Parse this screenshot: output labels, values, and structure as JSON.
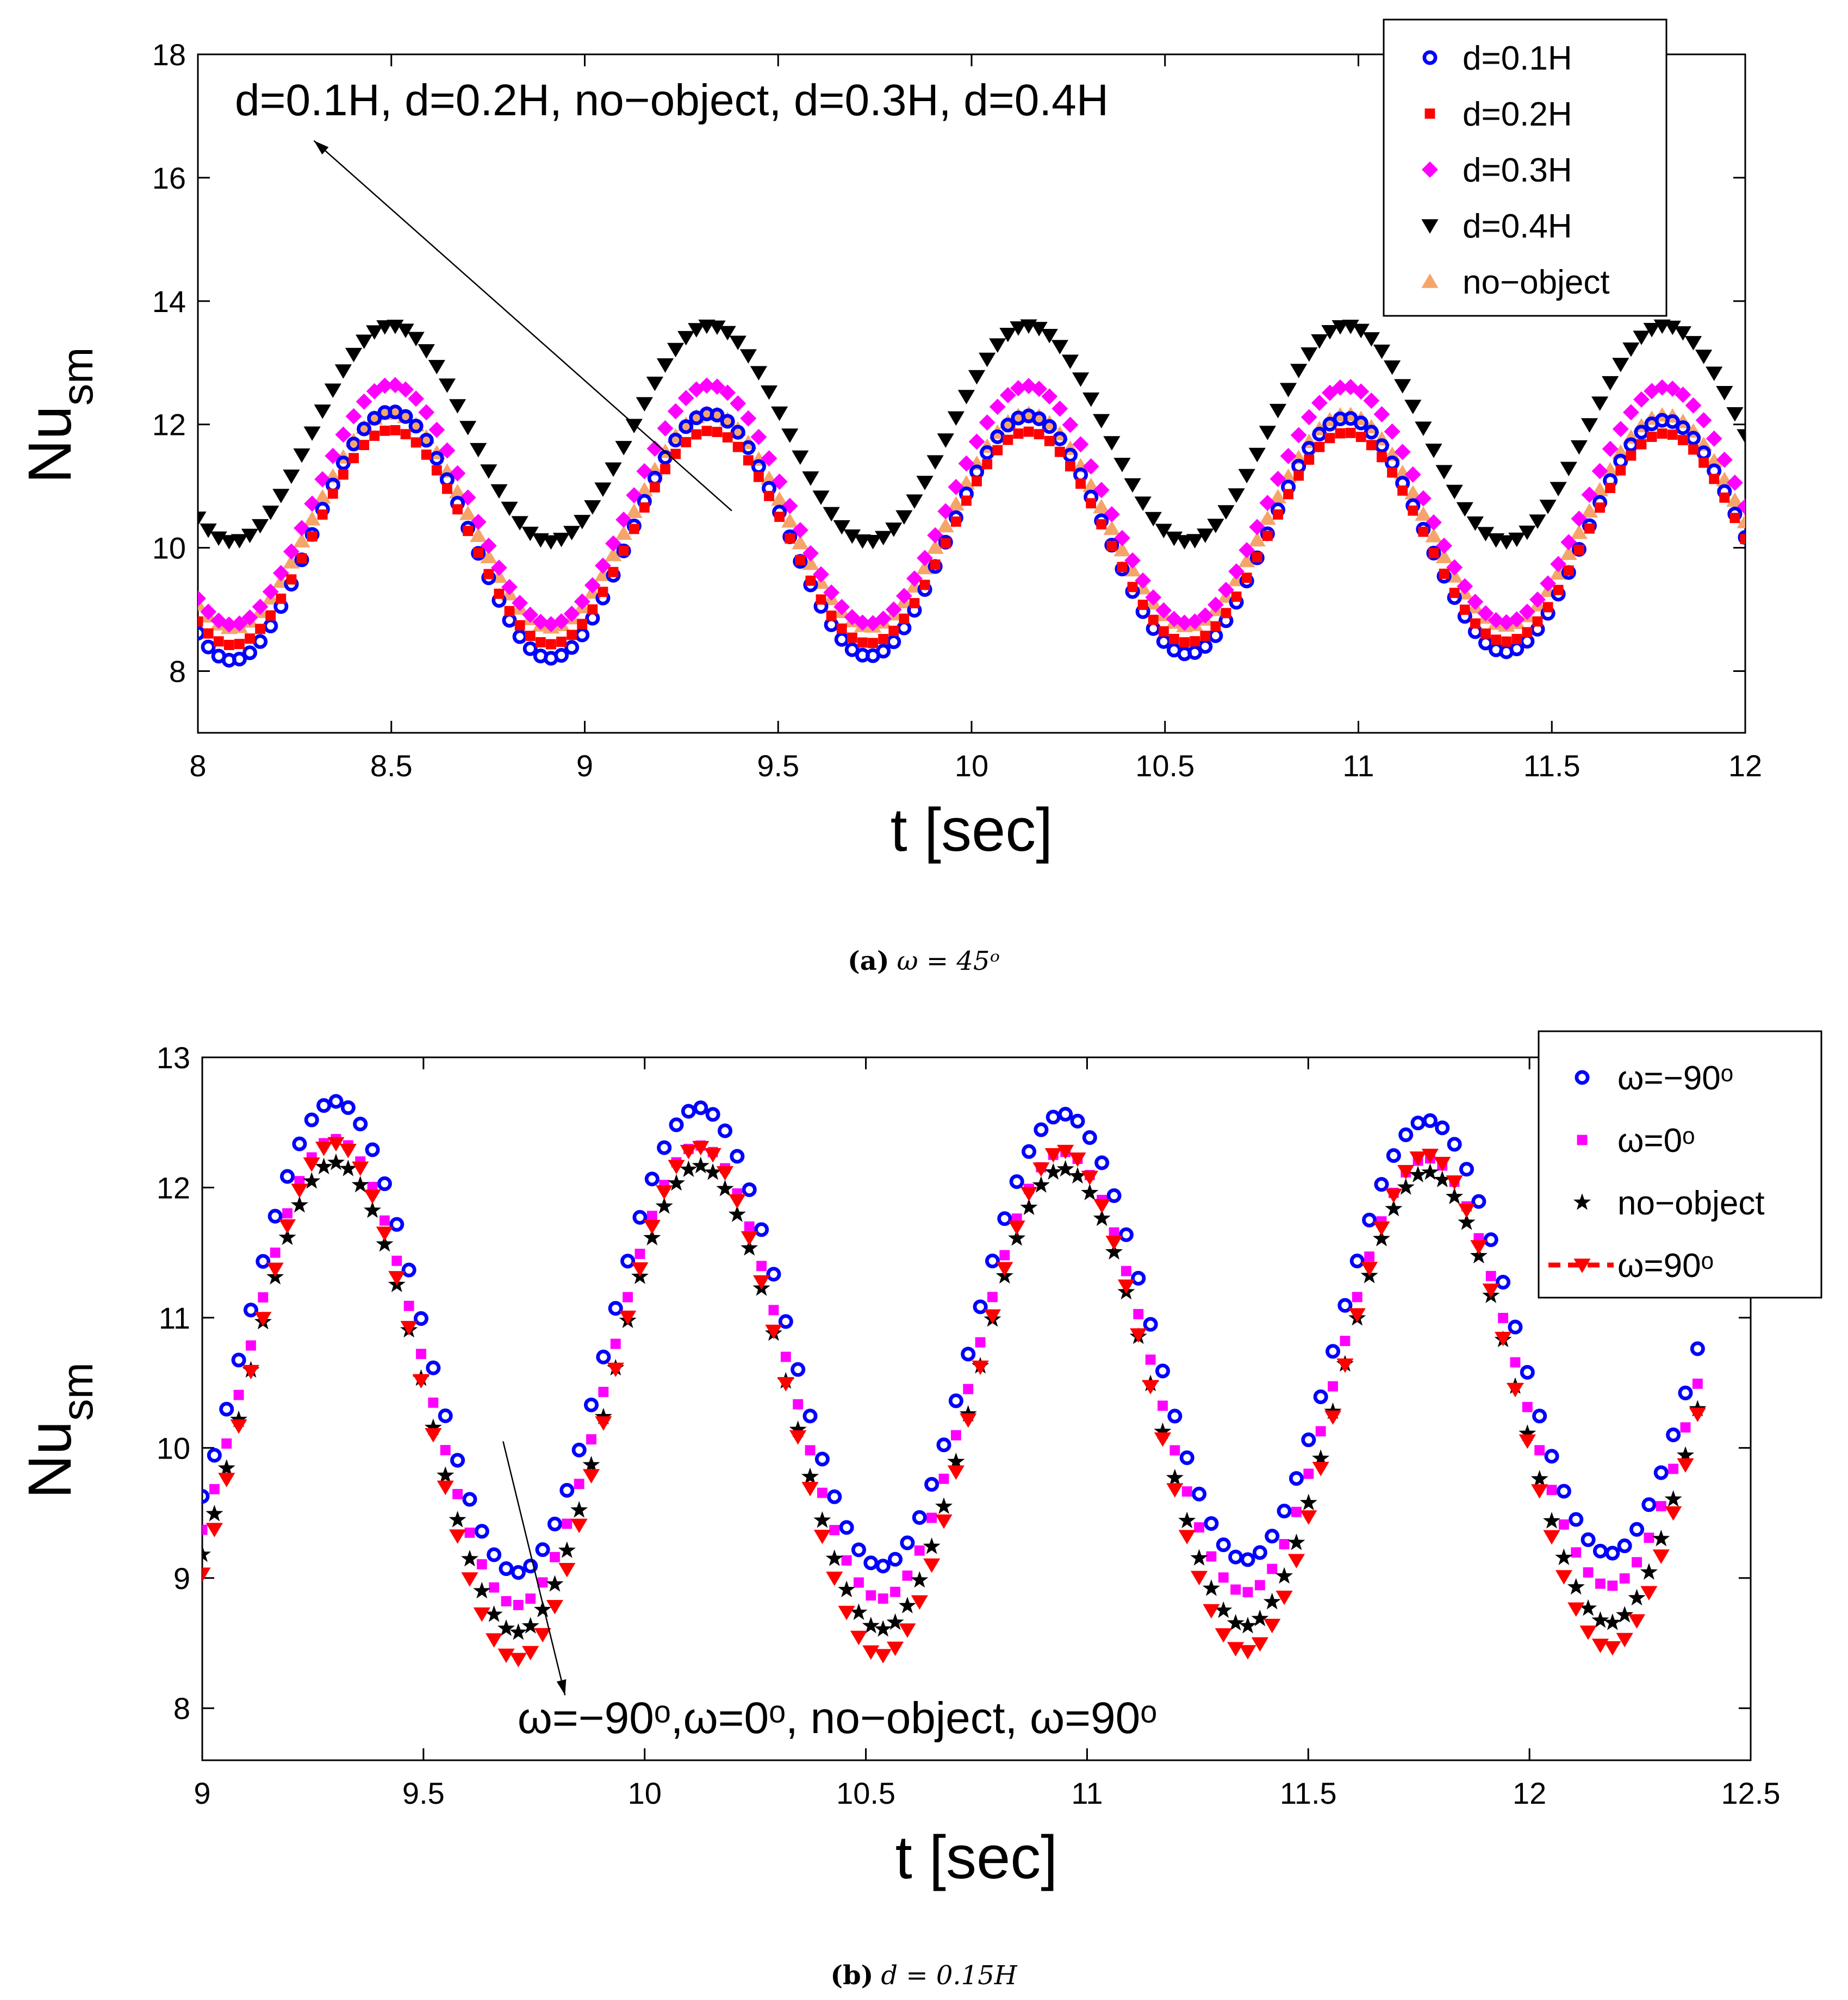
{
  "chart_data": [
    {
      "type": "scatter",
      "caption_label": "(a)",
      "caption_math": "ω = 45ᵒ",
      "xlabel": "t [sec]",
      "ylabel_main": "Nu",
      "ylabel_sub": "sm",
      "xlim": [
        8,
        12
      ],
      "ylim": [
        7,
        18
      ],
      "xticks": [
        "8",
        "8.5",
        "9",
        "9.5",
        "10",
        "10.5",
        "11",
        "11.5",
        "12"
      ],
      "xtick_values": [
        8,
        8.5,
        9,
        9.5,
        10,
        10.5,
        11,
        11.5,
        12
      ],
      "yticks": [
        "8",
        "10",
        "12",
        "14",
        "16",
        "18"
      ],
      "ytick_values": [
        8,
        10,
        12,
        14,
        16,
        18
      ],
      "grid": false,
      "legend_position": "top-right",
      "annotation": {
        "text": "d=0.1H, d=0.2H, no−object, d=0.3H, d=0.4H",
        "arrow_from": [
          9.38,
          10.6
        ],
        "arrow_to": [
          8.3,
          16.6
        ]
      },
      "series": [
        {
          "name": "d=0.1H",
          "marker": "circle",
          "color": "#0000ff",
          "x_start": 8.0,
          "x_end": 12.0,
          "count": 150,
          "period": 0.823,
          "mean": 10.2,
          "amplitude": 2.03,
          "amplitude_end": 1.86,
          "peak_t": 8.5
        },
        {
          "name": "d=0.2H",
          "marker": "square",
          "color": "#ff0000",
          "x_start": 8.0,
          "x_end": 12.0,
          "count": 150,
          "period": 0.823,
          "mean": 10.17,
          "amplitude": 1.75,
          "amplitude_end": 1.68,
          "peak_t": 8.5
        },
        {
          "name": "d=0.3H",
          "marker": "diamond",
          "color": "#ff00ff",
          "x_start": 8.0,
          "x_end": 12.0,
          "count": 150,
          "period": 0.823,
          "mean": 10.7,
          "amplitude": 1.95,
          "amplitude_end": 1.9,
          "peak_t": 8.5
        },
        {
          "name": "d=0.4H",
          "marker": "triangle-down",
          "color": "#000000",
          "x_start": 8.0,
          "x_end": 12.0,
          "count": 150,
          "period": 0.823,
          "mean": 11.85,
          "amplitude": 1.75,
          "amplitude_end": 1.75,
          "peak_t": 8.5
        },
        {
          "name": "no−object",
          "marker": "triangle-up",
          "color": "#f5a56a",
          "x_start": 8.0,
          "x_end": 12.0,
          "count": 150,
          "period": 0.823,
          "mean": 10.45,
          "amplitude": 1.75,
          "amplitude_end": 1.7,
          "peak_t": 8.5
        }
      ],
      "draw_order": [
        4,
        2,
        0,
        1,
        3
      ]
    },
    {
      "type": "scatter",
      "caption_label": "(b)",
      "caption_math": "d = 0.15H",
      "xlabel": "t [sec]",
      "ylabel_main": "Nu",
      "ylabel_sub": "sm",
      "xlim": [
        9,
        12.5
      ],
      "ylim": [
        7.6,
        13
      ],
      "xticks": [
        "9",
        "9.5",
        "10",
        "10.5",
        "11",
        "11.5",
        "12",
        "12.5"
      ],
      "xtick_values": [
        9,
        9.5,
        10,
        10.5,
        11,
        11.5,
        12,
        12.5
      ],
      "yticks": [
        "8",
        "9",
        "10",
        "11",
        "12",
        "13"
      ],
      "ytick_values": [
        8,
        9,
        10,
        11,
        12,
        13
      ],
      "grid": false,
      "legend_position": "top-right",
      "annotation": {
        "text": "ω=−90ᵒ,ω=0ᵒ, no−object, ω=90ᵒ",
        "arrow_from": [
          9.68,
          10.05
        ],
        "arrow_to": [
          9.82,
          8.1
        ]
      },
      "series": [
        {
          "name": "ω=−90ᵒ",
          "marker": "circle",
          "color": "#0000ff",
          "x_start": 9.0,
          "x_end": 12.38,
          "count": 124,
          "period": 0.823,
          "mean": 10.84,
          "amplitude": 1.84,
          "amplitude_end": 1.64,
          "peak_t": 9.3
        },
        {
          "name": "ω=0ᵒ",
          "marker": "square",
          "color": "#ff00ff",
          "x_start": 9.0,
          "x_end": 12.38,
          "count": 124,
          "period": 0.823,
          "mean": 10.57,
          "amplitude": 1.82,
          "amplitude_end": 1.62,
          "peak_t": 9.3
        },
        {
          "name": "no−object",
          "marker": "star",
          "color": "#000000",
          "x_start": 9.0,
          "x_end": 12.38,
          "count": 124,
          "period": 0.823,
          "mean": 10.38,
          "amplitude": 1.82,
          "amplitude_end": 1.72,
          "peak_t": 9.3
        },
        {
          "name": "ω=90ᵒ",
          "marker": "triangle-down",
          "color": "#ff0000",
          "x_start": 9.0,
          "x_end": 12.38,
          "count": 124,
          "period": 0.823,
          "mean": 10.35,
          "amplitude": 2.0,
          "amplitude_end": 1.88,
          "peak_t": 9.3,
          "legend_line": "dashed"
        }
      ],
      "draw_order": [
        0,
        1,
        2,
        3
      ]
    }
  ]
}
